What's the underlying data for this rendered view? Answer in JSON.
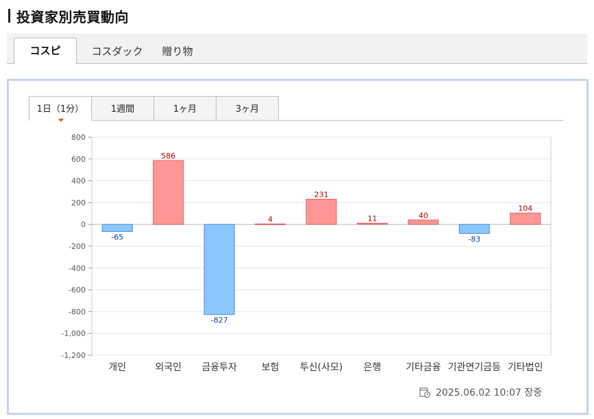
{
  "title": "投資家別売買動向",
  "main_tabs": [
    {
      "label": "コスピ",
      "active": true
    },
    {
      "label": "コスダック",
      "active": false
    },
    {
      "label": "贈り物",
      "active": false
    }
  ],
  "period_tabs": [
    {
      "label": "1日（1分）",
      "active": true
    },
    {
      "label": "1週間",
      "active": false
    },
    {
      "label": "1ヶ月",
      "active": false
    },
    {
      "label": "3ヶ月",
      "active": false
    }
  ],
  "timestamp": "2025.06.02 10:07 장중",
  "colors": {
    "positive_fill": "#ff9696",
    "positive_stroke": "#e06060",
    "positive_text": "#b00000",
    "negative_fill": "#8cc6ff",
    "negative_stroke": "#4a88d6",
    "negative_text": "#0d3f9e"
  },
  "chart_data": {
    "type": "bar",
    "categories": [
      "개인",
      "외국인",
      "금융투자",
      "보험",
      "투신(사모)",
      "은행",
      "기타금융",
      "기관연기금등",
      "기타법인"
    ],
    "values": [
      -65,
      586,
      -827,
      4,
      231,
      11,
      40,
      -83,
      104
    ],
    "data_labels": [
      "-65",
      "586",
      "-827",
      "4",
      "231",
      "11",
      "40",
      "-83",
      "104"
    ],
    "yticks": [
      "800",
      "600",
      "400",
      "200",
      "0",
      "-200",
      "-400",
      "-600",
      "-800",
      "-1,000",
      "-1,200"
    ],
    "ylim": [
      -1200,
      800
    ],
    "grid": true
  }
}
